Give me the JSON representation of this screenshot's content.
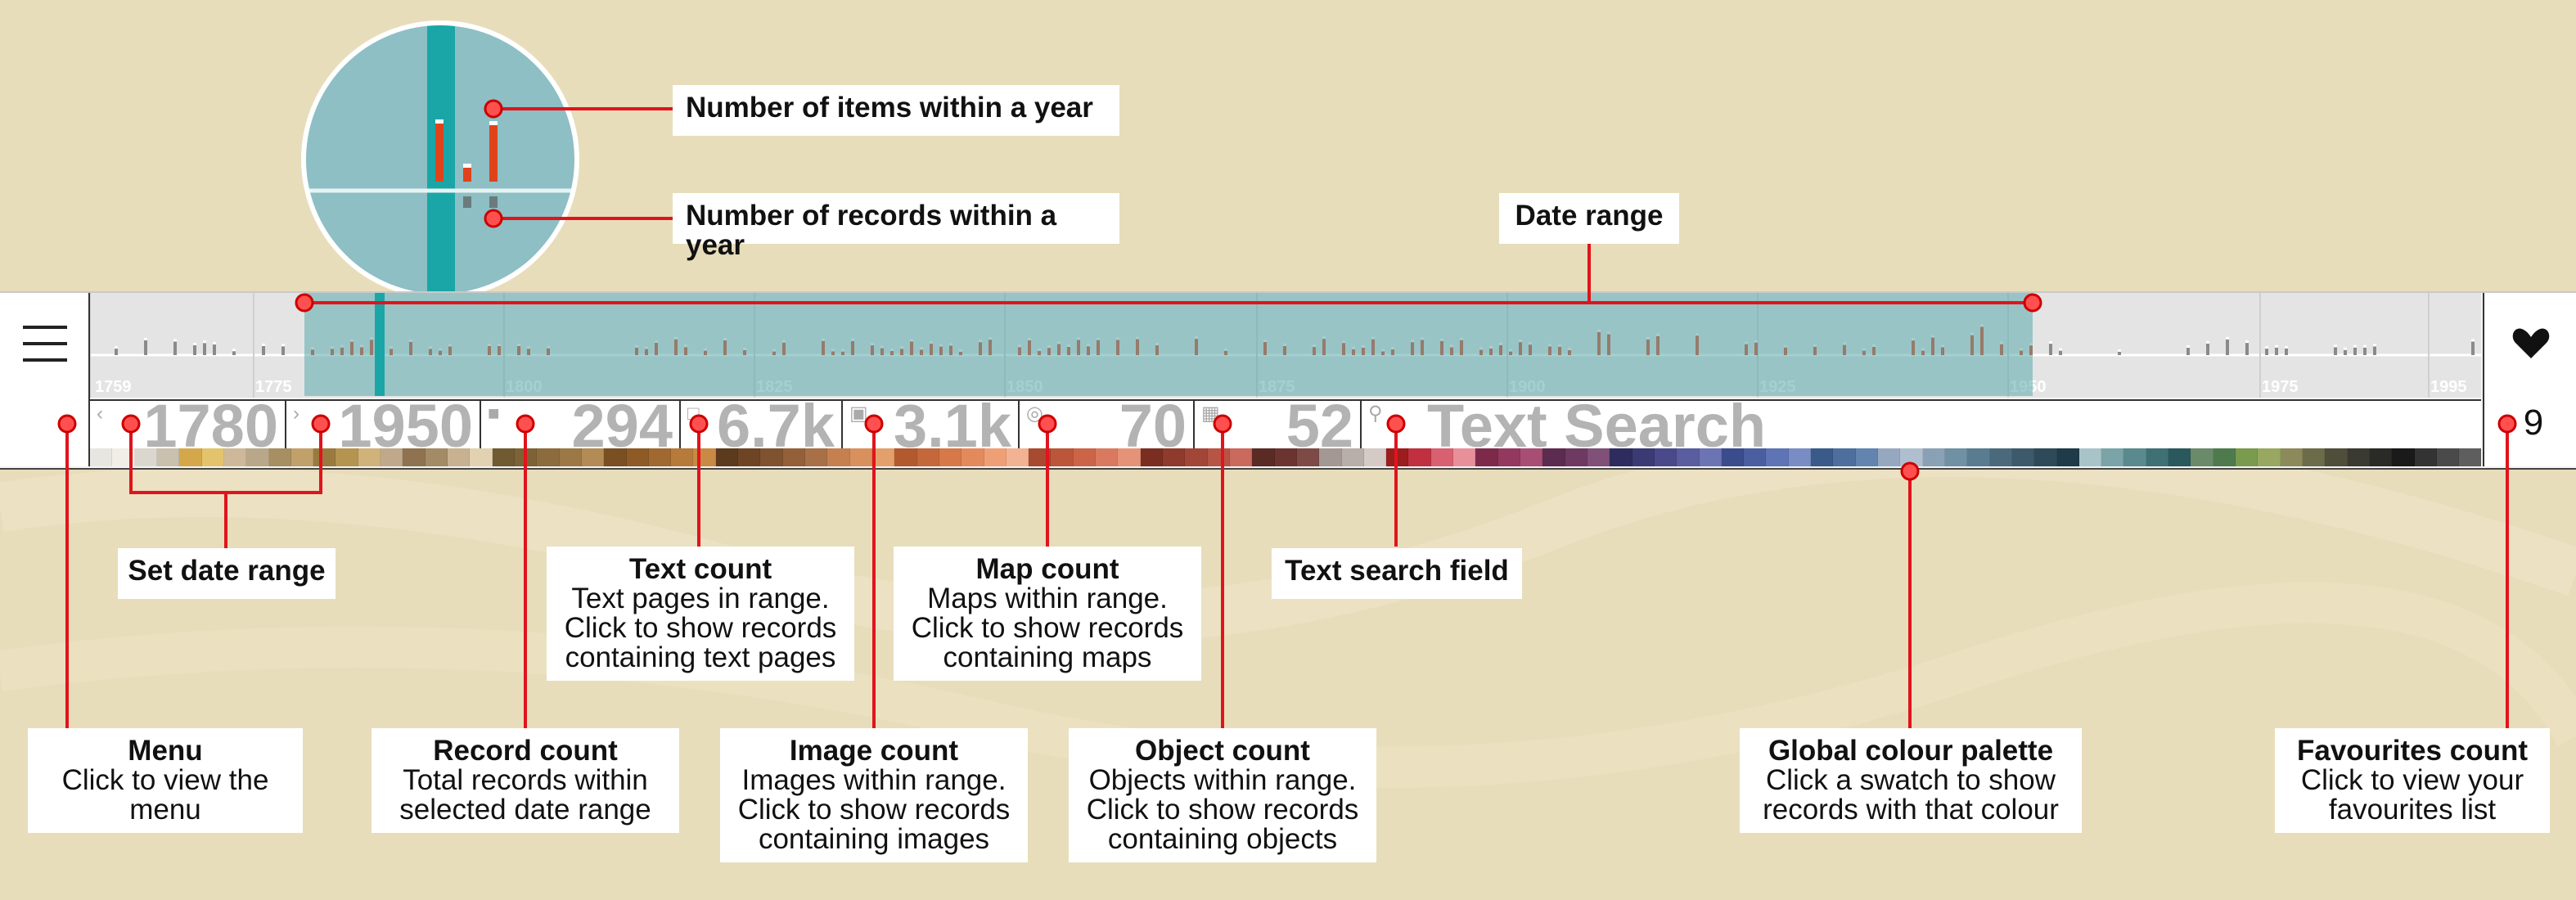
{
  "toolbar": {
    "date_from": "1780",
    "date_to": "1950",
    "record_count": "294",
    "text_count": "6.7k",
    "image_count": "3.1k",
    "map_count": "70",
    "object_count": "52",
    "search_placeholder": "Text Search",
    "favourites_count": "9",
    "heart_icon": "heart-icon",
    "menu_icon": "hamburger-menu-icon"
  },
  "timeline": {
    "tick_labels": [
      "1759",
      "1775",
      "1800",
      "1825",
      "1850",
      "1875",
      "1900",
      "1925",
      "1950",
      "1975",
      "1995"
    ],
    "selected_range": [
      "1780",
      "1950"
    ]
  },
  "callouts": {
    "items_per_year": "Number of items within a year",
    "records_per_year": "Number of records within a year",
    "date_range": "Date range",
    "set_date_range": "Set date range",
    "text_search": "Text search field",
    "text_count": {
      "title": "Text count",
      "desc": [
        "Text pages in range.",
        "Click to show records",
        "containing text pages"
      ]
    },
    "map_count": {
      "title": "Map count",
      "desc": [
        "Maps within range.",
        "Click to show records",
        "containing maps"
      ]
    },
    "menu": {
      "title": "Menu",
      "desc": [
        "Click to view the",
        "menu"
      ]
    },
    "record_count": {
      "title": "Record count",
      "desc": [
        "Total records within",
        "selected date range"
      ]
    },
    "image_count": {
      "title": "Image count",
      "desc": [
        "Images within range.",
        "Click to show records",
        "containing images"
      ]
    },
    "object_count": {
      "title": "Object count",
      "desc": [
        "Objects within range.",
        "Click to show records",
        "containing objects"
      ]
    },
    "palette": {
      "title": "Global colour palette",
      "desc": [
        "Click a swatch to show",
        "records with that colour"
      ]
    },
    "favourites": {
      "title": "Favourites count",
      "desc": [
        "Click to view your",
        "favourites list"
      ]
    }
  },
  "palette_colors": [
    "#e8e6e0",
    "#f1eee6",
    "#dcd7ce",
    "#c9c0ad",
    "#d4a84a",
    "#e3c46d",
    "#cdb99a",
    "#b8a788",
    "#a78f62",
    "#c1a06a",
    "#9a7a3e",
    "#b5944f",
    "#cfb37a",
    "#bfa98a",
    "#8f7350",
    "#a38b66",
    "#c7b190",
    "#e2d2b2",
    "#6f5a32",
    "#7d6235",
    "#8c6c3c",
    "#9b7845",
    "#b38b55",
    "#7a4f22",
    "#8e5a26",
    "#a0692f",
    "#b67a3a",
    "#c98a45",
    "#5c3a1e",
    "#6d4524",
    "#7f5230",
    "#93603a",
    "#a87046",
    "#c58050",
    "#d8915c",
    "#e3a06a",
    "#b25a2e",
    "#c4673a",
    "#d67848",
    "#e38a5c",
    "#ee9f76",
    "#f2b393",
    "#a84a2f",
    "#bb563a",
    "#cc6548",
    "#d97a60",
    "#e59378",
    "#7a2e22",
    "#8e3a2c",
    "#a24638",
    "#b65546",
    "#ca6a5c",
    "#5a2a24",
    "#6b3430",
    "#7d4a46",
    "#a39894",
    "#b8aeaa",
    "#d4cac6",
    "#9b1d1d",
    "#c03040",
    "#d86070",
    "#e8909a",
    "#7d2a4a",
    "#93385e",
    "#a84e74",
    "#5b2c4f",
    "#6e3a62",
    "#805078",
    "#2e2c5e",
    "#3b3a74",
    "#4a4a8a",
    "#5a5ea0",
    "#6c74b4",
    "#3a4c8c",
    "#4a5ea0",
    "#5e74b4",
    "#7a8cc4",
    "#3a5a8a",
    "#4e6e9e",
    "#6484b0",
    "#95a8c0",
    "#b0bfd0",
    "#8aa0b4",
    "#7090a4",
    "#5a7c90",
    "#4a6a7c",
    "#3c5a6a",
    "#2e4a58",
    "#1f3a48",
    "#a8c4c8",
    "#7aa4a8",
    "#5a8a8e",
    "#3e7074",
    "#2a585c",
    "#6a8a6a",
    "#4e7a4e",
    "#7a9a4e",
    "#98a860",
    "#8c8a5a",
    "#6c6c4a",
    "#4e4e3a",
    "#3a3a30",
    "#2a2a26",
    "#1a1a1a",
    "#333333",
    "#4a4a4a",
    "#5e5e5e"
  ]
}
